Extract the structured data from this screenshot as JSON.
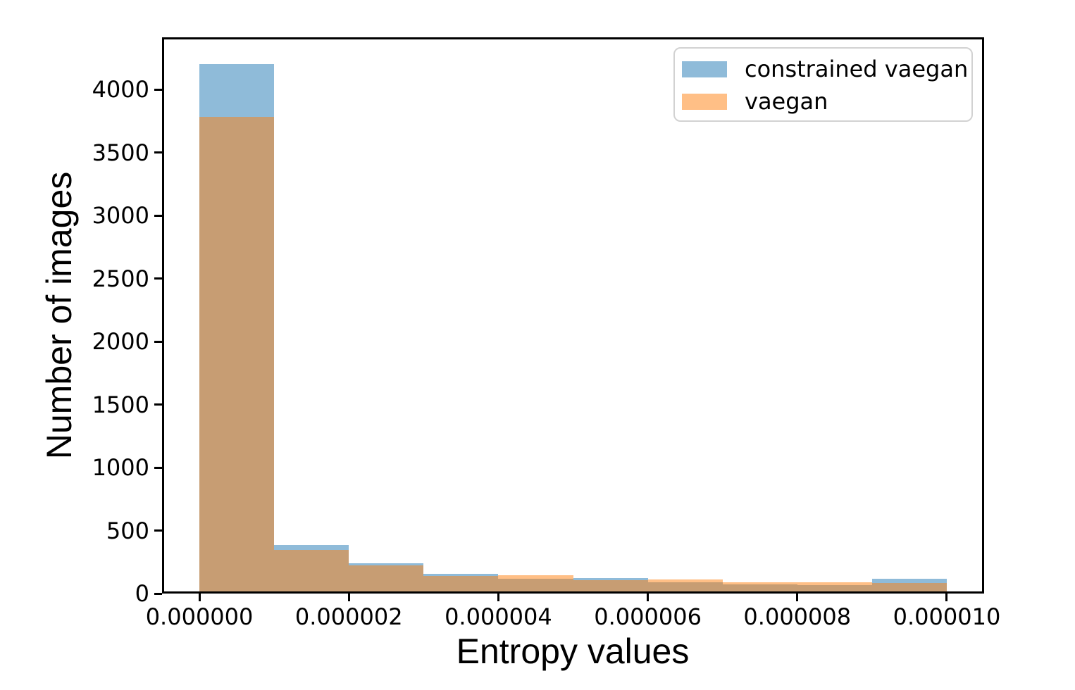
{
  "figure": {
    "background": "#ffffff",
    "spine_color": "#000000",
    "overlap_color": "#c79d74"
  },
  "chart_data": {
    "type": "bar",
    "subtype": "overlapping-histogram",
    "title": "",
    "xlabel": "Entropy values",
    "ylabel": "Number of images",
    "xlim": [
      -5e-07,
      1.05e-05
    ],
    "ylim": [
      0,
      4415
    ],
    "grid": false,
    "bin_edges": [
      0,
      1e-06,
      2e-06,
      3e-06,
      4e-06,
      5e-06,
      6e-06,
      7e-06,
      8e-06,
      9e-06,
      1e-05
    ],
    "series": [
      {
        "name": "constrained vaegan",
        "color": "#1f77b4",
        "fill": "rgba(31,119,180,0.5)",
        "values": [
          4205,
          385,
          240,
          158,
          118,
          124,
          90,
          72,
          65,
          115
        ]
      },
      {
        "name": "vaegan",
        "color": "#ff7f0e",
        "fill": "rgba(255,127,14,0.5)",
        "values": [
          3785,
          348,
          222,
          140,
          143,
          104,
          110,
          88,
          90,
          83
        ]
      }
    ],
    "xticks": {
      "values": [
        0,
        2e-06,
        4e-06,
        6e-06,
        8e-06,
        1e-05
      ],
      "labels": [
        "0.000000",
        "0.000002",
        "0.000004",
        "0.000006",
        "0.000008",
        "0.000010"
      ]
    },
    "yticks": {
      "values": [
        0,
        500,
        1000,
        1500,
        2000,
        2500,
        3000,
        3500,
        4000
      ],
      "labels": [
        "0",
        "500",
        "1000",
        "1500",
        "2000",
        "2500",
        "3000",
        "3500",
        "4000"
      ]
    },
    "legend": {
      "position": "upper right",
      "entries": [
        "constrained vaegan",
        "vaegan"
      ]
    }
  }
}
